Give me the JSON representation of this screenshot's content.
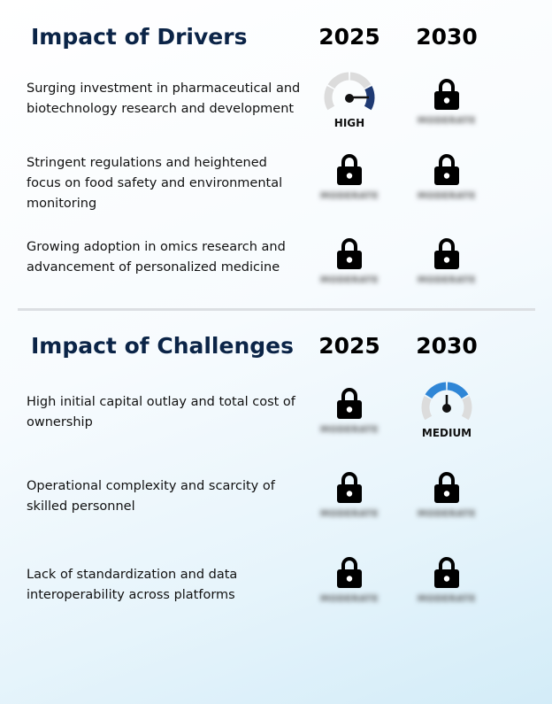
{
  "drivers": {
    "title": "Impact of Drivers",
    "years": [
      "2025",
      "2030"
    ],
    "rows": [
      {
        "label": "Surging investment in pharmaceutical and biotechnology research and development",
        "cells": [
          {
            "type": "gauge",
            "level": "HIGH",
            "color": "#1f3a73"
          },
          {
            "type": "locked",
            "placeholder": "MODERATE"
          }
        ]
      },
      {
        "label": "Stringent regulations and heightened focus on food safety and environmental monitoring",
        "cells": [
          {
            "type": "locked",
            "placeholder": "MODERATE"
          },
          {
            "type": "locked",
            "placeholder": "MODERATE"
          }
        ]
      },
      {
        "label": "Growing adoption in omics research and advancement of personalized medicine",
        "cells": [
          {
            "type": "locked",
            "placeholder": "MODERATE"
          },
          {
            "type": "locked",
            "placeholder": "MODERATE"
          }
        ]
      }
    ]
  },
  "challenges": {
    "title": "Impact of Challenges",
    "years": [
      "2025",
      "2030"
    ],
    "rows": [
      {
        "label": "High initial capital outlay and total cost of ownership",
        "cells": [
          {
            "type": "locked",
            "placeholder": "MODERATE"
          },
          {
            "type": "gauge",
            "level": "MEDIUM",
            "color": "#2f86d6"
          }
        ]
      },
      {
        "label": "Operational complexity and scarcity of skilled personnel",
        "cells": [
          {
            "type": "locked",
            "placeholder": "MODERATE"
          },
          {
            "type": "locked",
            "placeholder": "MODERATE"
          }
        ]
      },
      {
        "label": "Lack of standardization and data interoperability across platforms",
        "cells": [
          {
            "type": "locked",
            "placeholder": "MODERATE"
          },
          {
            "type": "locked",
            "placeholder": "MODERATE"
          }
        ]
      }
    ]
  },
  "colors": {
    "title": "#0b2447",
    "gauge_track": "#dcdcdc",
    "needle": "#111111"
  }
}
